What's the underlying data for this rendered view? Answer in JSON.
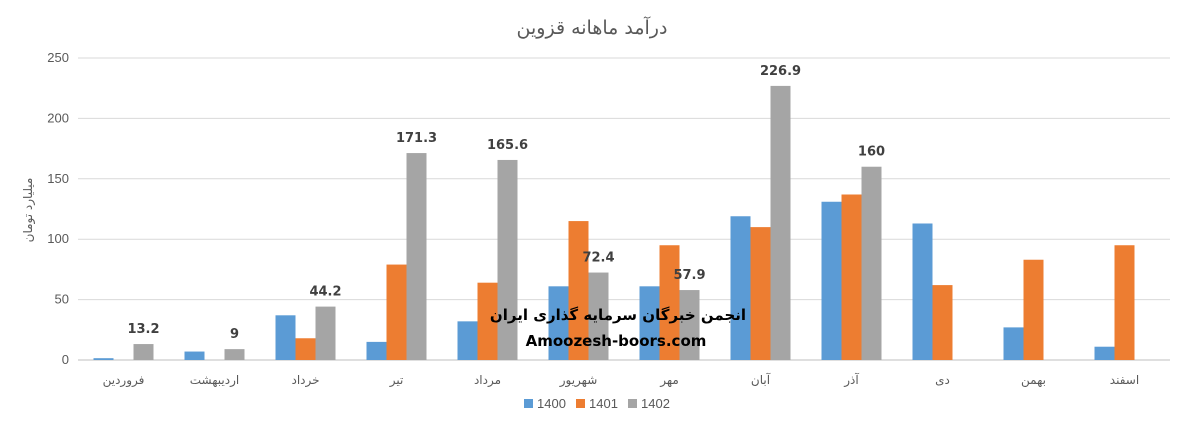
{
  "chart_data": {
    "type": "bar",
    "title": "درآمد ماهانه قزوین",
    "ylabel": "میلیارد تومان",
    "xlabel": "",
    "ylim": [
      0,
      250
    ],
    "yticks": [
      0,
      50,
      100,
      150,
      200,
      250
    ],
    "grid": true,
    "legend_position": "bottom",
    "categories": [
      "فروردین",
      "اردیبهشت",
      "خرداد",
      "تیر",
      "مرداد",
      "شهریور",
      "مهر",
      "آبان",
      "آذر",
      "دی",
      "بهمن",
      "اسفند"
    ],
    "series": [
      {
        "name": "1400",
        "color": "#5B9BD5",
        "values": [
          1.5,
          7,
          37,
          15,
          32,
          61,
          61,
          119,
          131,
          113,
          27,
          11
        ],
        "labels": [
          "",
          "",
          "",
          "",
          "",
          "",
          "",
          "",
          "",
          "",
          "",
          ""
        ]
      },
      {
        "name": "1401",
        "color": "#ED7D31",
        "values": [
          0,
          0,
          18,
          79,
          64,
          115,
          95,
          110,
          137,
          62,
          83,
          95
        ],
        "labels": [
          "",
          "",
          "",
          "",
          "",
          "",
          "",
          "",
          "",
          "",
          "",
          ""
        ]
      },
      {
        "name": "1402",
        "color": "#A5A5A5",
        "values": [
          13.2,
          9,
          44.2,
          171.3,
          165.6,
          72.4,
          57.9,
          226.9,
          160,
          null,
          null,
          null
        ],
        "labels": [
          "13.2",
          "9",
          "44.2",
          "171.3",
          "165.6",
          "72.4",
          "57.9",
          "226.9",
          "160",
          "",
          "",
          ""
        ]
      }
    ]
  },
  "watermark": {
    "line1": "انجمن خبرگان سرمایه گذاری ایران",
    "line2": "Amoozesh-boors.com"
  }
}
